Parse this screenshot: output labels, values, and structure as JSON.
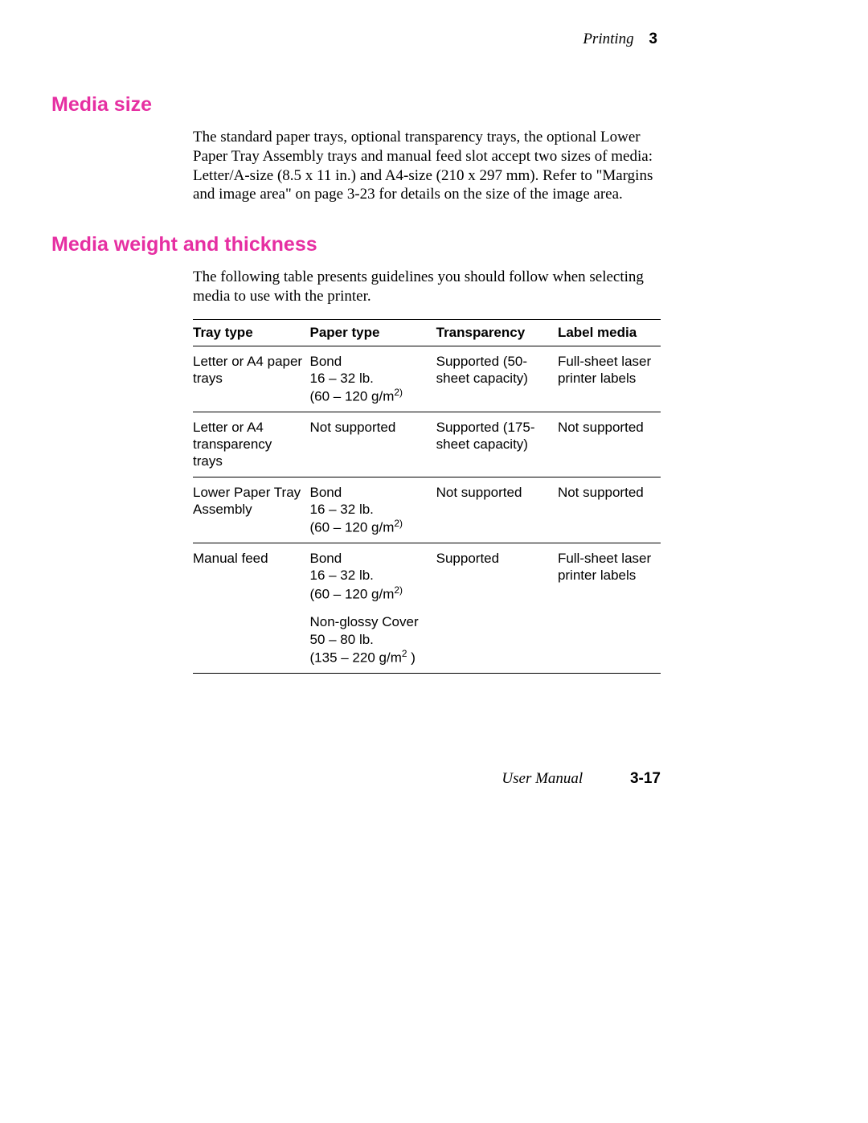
{
  "header": {
    "section": "Printing",
    "chapter": "3"
  },
  "heading1": "Media size",
  "para1": "The standard paper trays, optional transparency trays, the optional Lower Paper Tray Assembly trays and manual feed slot accept two sizes of media: Letter/A-size (8.5 x 11 in.) and A4-size (210 x 297 mm).  Refer to \"Margins and image area\" on page 3-23 for details on the size of the image area.",
  "heading2": "Media weight and thickness",
  "para2": "The following table presents guidelines you should follow when selecting media to use with the printer.",
  "table": {
    "columns": [
      "Tray type",
      "Paper type",
      "Transparency",
      "Label media"
    ],
    "rows": [
      {
        "tray": "Letter or A4 paper trays",
        "paper": {
          "l1": "Bond",
          "l2": "16 – 32 lb.",
          "l3a": "(60 – 120 g/m",
          "l3b": "2)"
        },
        "trans": "Supported (50-sheet capacity)",
        "label": "Full-sheet laser printer labels"
      },
      {
        "tray": "Letter or A4 transparency trays",
        "paper_plain": "Not supported",
        "trans": "Supported (175-sheet capacity)",
        "label": "Not supported"
      },
      {
        "tray": "Lower Paper Tray Assembly",
        "paper": {
          "l1": "Bond",
          "l2": "16 – 32 lb.",
          "l3a": "(60 – 120 g/m",
          "l3b": "2)"
        },
        "trans": "Not supported",
        "label": "Not supported"
      },
      {
        "tray": "Manual feed",
        "paper": {
          "l1": "Bond",
          "l2": "16 – 32 lb.",
          "l3a": "(60 – 120 g/m",
          "l3b": "2)"
        },
        "paper2": {
          "l1": "Non-glossy Cover",
          "l2": "50 – 80 lb.",
          "l3a": "(135 – 220 g/m",
          "l3b": "2",
          "l3c": " )"
        },
        "trans": "Supported",
        "label": "Full-sheet laser printer labels"
      }
    ]
  },
  "footer": {
    "manual": "User Manual",
    "page": "3-17"
  },
  "colors": {
    "accent": "#e62fa2",
    "text": "#000000",
    "bg": "#ffffff"
  }
}
